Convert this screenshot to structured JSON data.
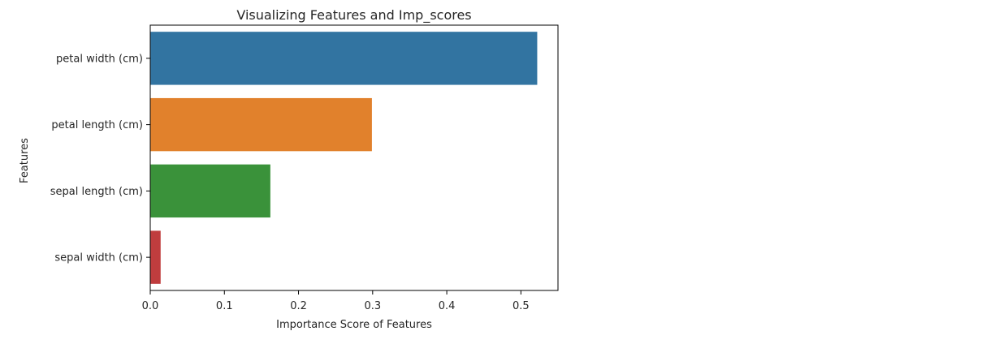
{
  "chart_data": {
    "type": "bar",
    "orientation": "horizontal",
    "title": "Visualizing Features and Imp_scores",
    "xlabel": "Importance Score of Features",
    "ylabel": "Features",
    "categories": [
      "petal width (cm)",
      "petal length (cm)",
      "sepal length (cm)",
      "sepal width (cm)"
    ],
    "values": [
      0.522,
      0.299,
      0.162,
      0.014
    ],
    "colors": [
      "#3274a1",
      "#e1812c",
      "#3a923a",
      "#c03d3e"
    ],
    "xlim": [
      0,
      0.55
    ],
    "xticks": [
      "0.0",
      "0.1",
      "0.2",
      "0.3",
      "0.4",
      "0.5"
    ],
    "grid": false,
    "legend": "none"
  }
}
